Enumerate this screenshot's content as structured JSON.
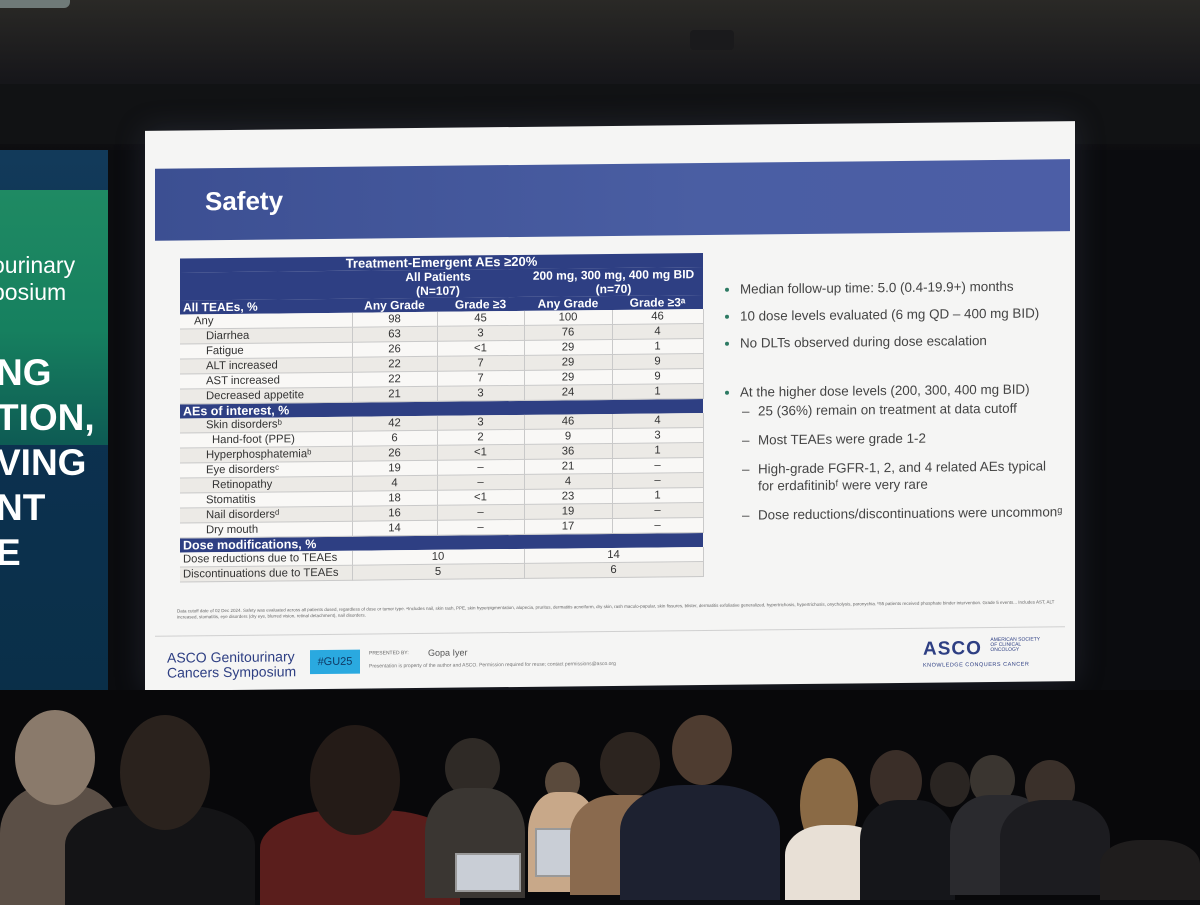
{
  "side_banner": {
    "top_lines": [
      "ourinary",
      "posium"
    ],
    "big_lines": [
      "NG",
      "TION,",
      "VING",
      "NT",
      "E"
    ]
  },
  "slide": {
    "title": "Safety",
    "table": {
      "caption": "Treatment-Emergent AEs ≥20%",
      "group1": {
        "name": "All Patients",
        "n": "(N=107)"
      },
      "group2": {
        "name": "200 mg, 300 mg, 400 mg BID",
        "n": "(n=70)"
      },
      "col_any": "Any Grade",
      "col_g3": "Grade ≥3",
      "col_g3a": "Grade ≥3ᵃ",
      "sections": [
        {
          "title": "All TEAEs, %",
          "rows": [
            {
              "label": "Any",
              "indent": 1,
              "v": [
                "98",
                "45",
                "100",
                "46"
              ]
            },
            {
              "label": "Diarrhea",
              "indent": 2,
              "v": [
                "63",
                "3",
                "76",
                "4"
              ]
            },
            {
              "label": "Fatigue",
              "indent": 2,
              "v": [
                "26",
                "<1",
                "29",
                "1"
              ]
            },
            {
              "label": "ALT increased",
              "indent": 2,
              "v": [
                "22",
                "7",
                "29",
                "9"
              ]
            },
            {
              "label": "AST increased",
              "indent": 2,
              "v": [
                "22",
                "7",
                "29",
                "9"
              ]
            },
            {
              "label": "Decreased appetite",
              "indent": 2,
              "v": [
                "21",
                "3",
                "24",
                "1"
              ]
            }
          ]
        },
        {
          "title": "AEs of interest, %",
          "rows": [
            {
              "label": "Skin disordersᵇ",
              "indent": 2,
              "v": [
                "42",
                "3",
                "46",
                "4"
              ]
            },
            {
              "label": "Hand-foot (PPE)",
              "indent": 3,
              "v": [
                "6",
                "2",
                "9",
                "3"
              ]
            },
            {
              "label": "Hyperphosphatemiaᵇ",
              "indent": 2,
              "v": [
                "26",
                "<1",
                "36",
                "1"
              ]
            },
            {
              "label": "Eye disordersᶜ",
              "indent": 2,
              "v": [
                "19",
                "–",
                "21",
                "–"
              ]
            },
            {
              "label": "Retinopathy",
              "indent": 3,
              "v": [
                "4",
                "–",
                "4",
                "–"
              ]
            },
            {
              "label": "Stomatitis",
              "indent": 2,
              "v": [
                "18",
                "<1",
                "23",
                "1"
              ]
            },
            {
              "label": "Nail disordersᵈ",
              "indent": 2,
              "v": [
                "16",
                "–",
                "19",
                "–"
              ]
            },
            {
              "label": "Dry mouth",
              "indent": 2,
              "v": [
                "14",
                "–",
                "17",
                "–"
              ]
            }
          ]
        },
        {
          "title": "Dose modifications, %",
          "rows": [
            {
              "label": "Dose reductions due to TEAEs",
              "indent": 0,
              "v": [
                "10",
                "14"
              ]
            },
            {
              "label": "Discontinuations due to TEAEs",
              "indent": 0,
              "v": [
                "5",
                "6"
              ]
            }
          ]
        }
      ]
    },
    "bullets": {
      "main1": "Median follow-up time: 5.0 (0.4-19.9+) months",
      "main2": "10 dose levels evaluated (6 mg QD – 400 mg BID)",
      "main3": "No DLTs observed during dose escalation",
      "main4": "At the higher dose levels (200, 300, 400 mg BID)",
      "sub1": "25 (36%) remain on treatment at data cutoff",
      "sub2": "Most TEAEs were grade 1-2",
      "sub3": "High-grade FGFR-1, 2, and 4 related AEs typical for erdafitinibᶠ were very rare",
      "sub4": "Dose reductions/discontinuations were uncommonᵍ"
    },
    "footnote": "Data cutoff date of 02 Dec 2024. Safety was evaluated across all patients dosed, regardless of dose or tumor type. ᵃIncludes nail, skin rash, PPE, skin hyperpigmentation, alopecia, pruritus, dermatitis acneiform, dry skin, rash maculo-papular, skin fissures, blister, dermatitis exfoliative generalized, hypertrichosis, hypertrichosis, onycholysis, paronychia. ᵇ55 patients received phosphate binder intervention. Grade 5 events... Includes AST, ALT increased, stomatitis, eye disorders (dry eye, blurred vision, retinal detachment), nail disorders.",
    "footer": {
      "logo_line1": "ASCO Genitourinary",
      "logo_line2": "Cancers Symposium",
      "hashtag": "#GU25",
      "presented_by": "PRESENTED BY:",
      "presenter": "Gopa Iyer",
      "permission": "Presentation is property of the author and ASCO. Permission required for reuse; contact permissions@asco.org",
      "brand": "ASCO",
      "brand_small": "AMERICAN SOCIETY OF CLINICAL ONCOLOGY",
      "tagline": "KNOWLEDGE CONQUERS CANCER"
    }
  }
}
